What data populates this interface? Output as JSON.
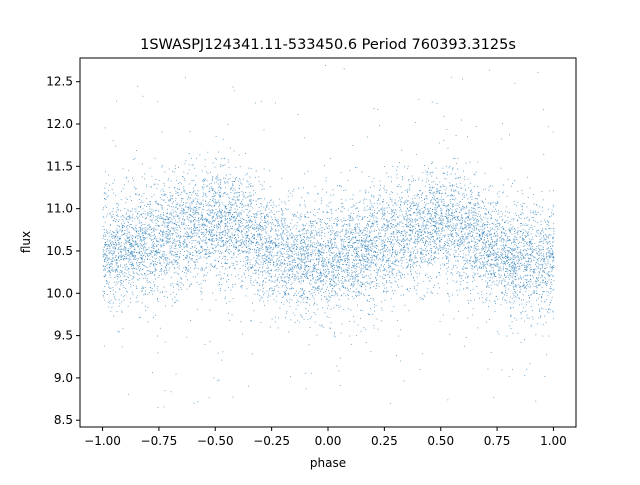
{
  "chart_data": {
    "type": "scatter",
    "title": "1SWASPJ124341.11-533450.6 Period 760393.3125s",
    "xlabel": "phase",
    "ylabel": "flux",
    "xlim": [
      -1.1,
      1.1
    ],
    "ylim": [
      8.42,
      12.78
    ],
    "xticks": [
      -1.0,
      -0.75,
      -0.5,
      -0.25,
      0.0,
      0.25,
      0.5,
      0.75,
      1.0
    ],
    "xtick_labels": [
      "−1.00",
      "−0.75",
      "−0.50",
      "−0.25",
      "0.00",
      "0.25",
      "0.50",
      "0.75",
      "1.00"
    ],
    "yticks": [
      8.5,
      9.0,
      9.5,
      10.0,
      10.5,
      11.0,
      11.5,
      12.0,
      12.5
    ],
    "ytick_labels": [
      "8.5",
      "9.0",
      "9.5",
      "10.0",
      "10.5",
      "11.0",
      "11.5",
      "12.0",
      "12.5"
    ],
    "grid": false,
    "legend": "none",
    "marker_color": "#1f77b4",
    "series": [
      {
        "phase": [
          -1.0,
          -0.9,
          -0.8,
          -0.7,
          -0.6,
          -0.5,
          -0.4,
          -0.3,
          -0.2,
          -0.1,
          0.0,
          0.1,
          0.2,
          0.3,
          0.4,
          0.5,
          0.6,
          0.7,
          0.8,
          0.9,
          1.0
        ],
        "flux_center": [
          10.5,
          10.55,
          10.6,
          10.7,
          10.78,
          10.85,
          10.75,
          10.6,
          10.45,
          10.4,
          10.4,
          10.45,
          10.55,
          10.65,
          10.75,
          10.85,
          10.75,
          10.6,
          10.45,
          10.4,
          10.45
        ],
        "flux_core_min": 9.8,
        "flux_core_max": 11.6,
        "flux_outlier_min": 8.6,
        "flux_outlier_max": 12.7
      }
    ]
  }
}
